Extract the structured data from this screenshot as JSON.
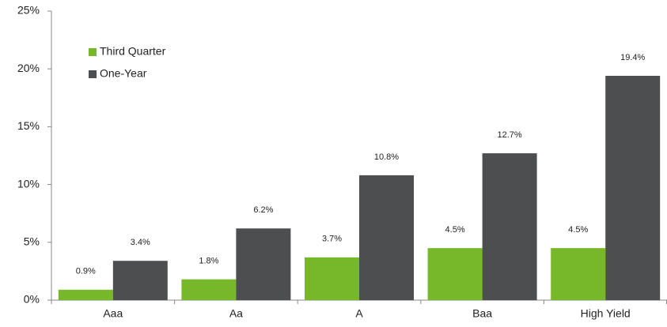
{
  "chart_data": {
    "type": "bar",
    "categories": [
      "Aaa",
      "Aa",
      "A",
      "Baa",
      "High Yield"
    ],
    "series": [
      {
        "name": "Third Quarter",
        "color": "#77b82a",
        "values": [
          0.9,
          1.8,
          3.7,
          4.5,
          4.5
        ],
        "value_labels": [
          "0.9%",
          "1.8%",
          "3.7%",
          "4.5%",
          "4.5%"
        ]
      },
      {
        "name": "One-Year",
        "color": "#4d4e50",
        "values": [
          3.4,
          6.2,
          10.8,
          12.7,
          19.4
        ],
        "value_labels": [
          "3.4%",
          "6.2%",
          "10.8%",
          "12.7%",
          "19.4%"
        ]
      }
    ],
    "ylim": [
      0,
      25
    ],
    "yticks": [
      {
        "value": 0,
        "label": "0%"
      },
      {
        "value": 5,
        "label": "5%"
      },
      {
        "value": 10,
        "label": "10%"
      },
      {
        "value": 15,
        "label": "15%"
      },
      {
        "value": 20,
        "label": "20%"
      },
      {
        "value": 25,
        "label": "25%"
      }
    ],
    "legend": "upper left"
  }
}
